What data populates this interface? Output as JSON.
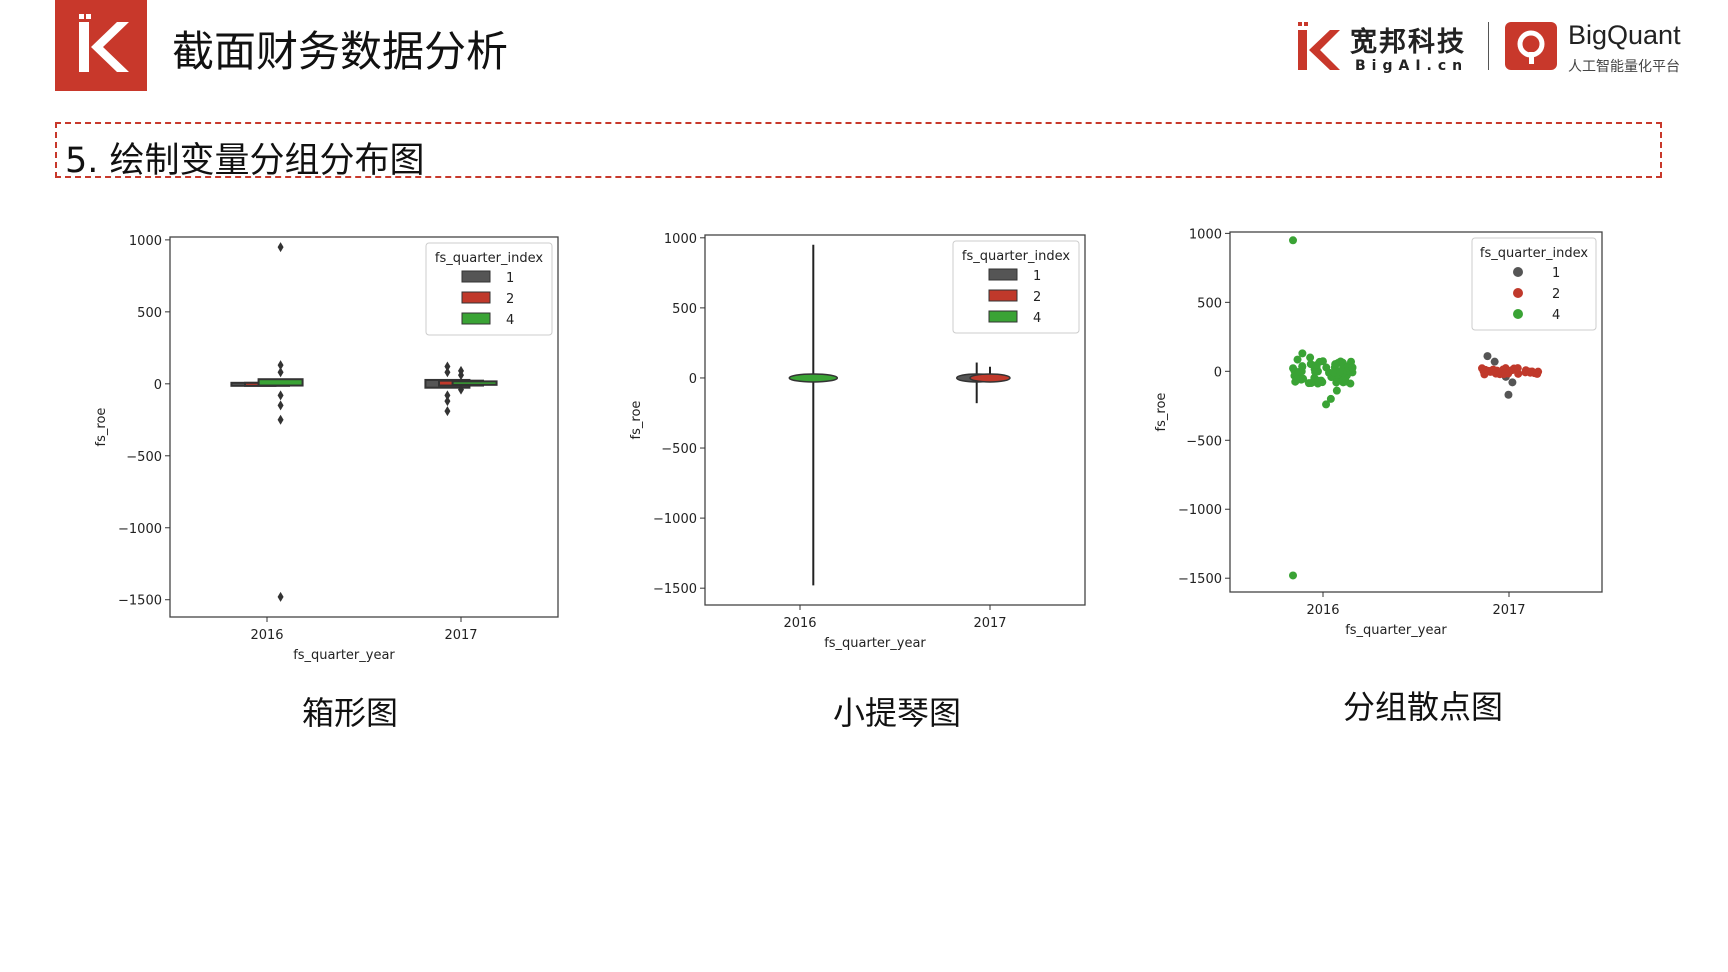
{
  "header": {
    "title": "截面财务数据分析",
    "brand_name": "宽邦科技",
    "brand_sub": "BigAI.cn",
    "bq_name": "BigQuant",
    "bq_sub": "人工智能量化平台"
  },
  "section": {
    "title": "5. 绘制变量分组分布图"
  },
  "captions": [
    "箱形图",
    "小提琴图",
    "分组散点图"
  ],
  "colors": {
    "q1": "#555555",
    "q2": "#c0392b",
    "q4": "#3aa335",
    "brand": "#c8382b"
  },
  "chart_data": [
    {
      "type": "box",
      "title": "",
      "xlabel": "fs_quarter_year",
      "ylabel": "fs_roe",
      "categories": [
        "2016",
        "2017"
      ],
      "ylim": [
        -1620,
        1020
      ],
      "yticks": [
        1000,
        500,
        0,
        -500,
        -1000,
        -1500
      ],
      "ytick_labels": [
        "1000",
        "500",
        "0",
        "−500",
        "−1000",
        "−1500"
      ],
      "legend": {
        "title": "fs_quarter_index",
        "entries": [
          "1",
          "2",
          "4"
        ],
        "placement": "top-right"
      },
      "series": [
        {
          "name": "1",
          "boxes": [
            {
              "category": "2016",
              "median": 0,
              "min": 0,
              "max": 0
            },
            {
              "category": "2017",
              "median": 5,
              "min": -20,
              "max": 20,
              "outliers": [
                -190,
                -120,
                -80,
                80,
                120
              ]
            }
          ]
        },
        {
          "name": "2",
          "boxes": [
            {
              "category": "2016",
              "median": 0,
              "min": 0,
              "max": 0
            },
            {
              "category": "2017",
              "median": 5,
              "min": -5,
              "max": 15,
              "outliers": [
                -40,
                60,
                90
              ]
            }
          ]
        },
        {
          "name": "4",
          "boxes": [
            {
              "category": "2016",
              "median": 10,
              "min": -5,
              "max": 25,
              "outliers": [
                950,
                130,
                80,
                -80,
                -150,
                -250,
                -1480
              ]
            },
            {
              "category": "2017",
              "median": 5,
              "min": 0,
              "max": 10
            }
          ]
        }
      ]
    },
    {
      "type": "violin",
      "title": "",
      "xlabel": "fs_quarter_year",
      "ylabel": "fs_roe",
      "categories": [
        "2016",
        "2017"
      ],
      "ylim": [
        -1620,
        1020
      ],
      "yticks": [
        1000,
        500,
        0,
        -500,
        -1000,
        -1500
      ],
      "ytick_labels": [
        "1000",
        "500",
        "0",
        "−500",
        "−1000",
        "−1500"
      ],
      "legend": {
        "title": "fs_quarter_index",
        "entries": [
          "1",
          "2",
          "4"
        ],
        "placement": "top-right"
      },
      "series": [
        {
          "name": "1",
          "violins": [
            {
              "category": "2017",
              "min": -180,
              "max": 110,
              "center": 0
            }
          ]
        },
        {
          "name": "2",
          "violins": [
            {
              "category": "2017",
              "min": -30,
              "max": 80,
              "center": 0
            }
          ]
        },
        {
          "name": "4",
          "violins": [
            {
              "category": "2016",
              "min": -1480,
              "max": 950,
              "center": 0
            }
          ]
        }
      ]
    },
    {
      "type": "scatter",
      "title": "",
      "xlabel": "fs_quarter_year",
      "ylabel": "fs_roe",
      "categories": [
        "2016",
        "2017"
      ],
      "ylim": [
        -1600,
        1010
      ],
      "yticks": [
        1000,
        500,
        0,
        -500,
        -1000,
        -1500
      ],
      "ytick_labels": [
        "1000",
        "500",
        "0",
        "−500",
        "−1000",
        "−1500"
      ],
      "legend": {
        "title": "fs_quarter_index",
        "entries": [
          "1",
          "2",
          "4"
        ],
        "placement": "top-right"
      },
      "series": [
        {
          "name": "1",
          "points": [
            {
              "x": "2017",
              "y": -170
            },
            {
              "x": "2017",
              "y": -80
            },
            {
              "x": "2017",
              "y": 110
            },
            {
              "x": "2017",
              "y": 70
            },
            {
              "x": "2017",
              "y": -40
            }
          ]
        },
        {
          "name": "2",
          "points": [
            {
              "x": "2017",
              "y": 0
            },
            {
              "x": "2017",
              "y": 10
            },
            {
              "x": "2017",
              "y": -10
            },
            {
              "x": "2017",
              "y": 20
            },
            {
              "x": "2017",
              "y": -20
            },
            {
              "x": "2017",
              "y": 5
            }
          ]
        },
        {
          "name": "4",
          "points": [
            {
              "x": "2016",
              "y": 950
            },
            {
              "x": "2016",
              "y": -1480
            },
            {
              "x": "2016",
              "y": 130
            },
            {
              "x": "2016",
              "y": 100
            },
            {
              "x": "2016",
              "y": 60
            },
            {
              "x": "2016",
              "y": 20
            },
            {
              "x": "2016",
              "y": 0
            },
            {
              "x": "2016",
              "y": -30
            },
            {
              "x": "2016",
              "y": -80
            },
            {
              "x": "2016",
              "y": -140
            },
            {
              "x": "2016",
              "y": -200
            },
            {
              "x": "2016",
              "y": -240
            }
          ]
        }
      ]
    }
  ]
}
